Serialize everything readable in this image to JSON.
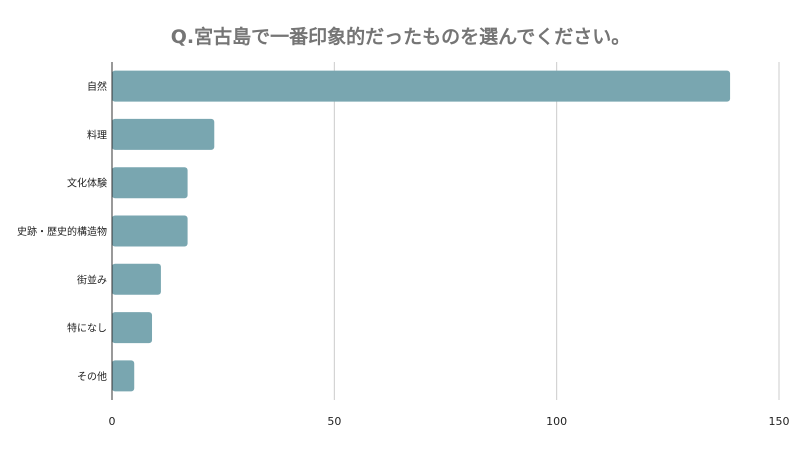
{
  "chart_data": {
    "type": "bar",
    "orientation": "horizontal",
    "title": "Q.宮古島で一番印象的だったものを選んでください。",
    "categories": [
      "自然",
      "料理",
      "文化体験",
      "史跡・歴史的構造物",
      "街並み",
      "特になし",
      "その他"
    ],
    "values": [
      139,
      23,
      17,
      17,
      11,
      9,
      5
    ],
    "xlim": [
      0,
      150
    ],
    "xticks": [
      0,
      50,
      100,
      150
    ],
    "grid": true,
    "bar_color": "#79a6b0",
    "grid_color": "#cccccc",
    "axis_color": "#333333",
    "title_color": "#757575"
  }
}
